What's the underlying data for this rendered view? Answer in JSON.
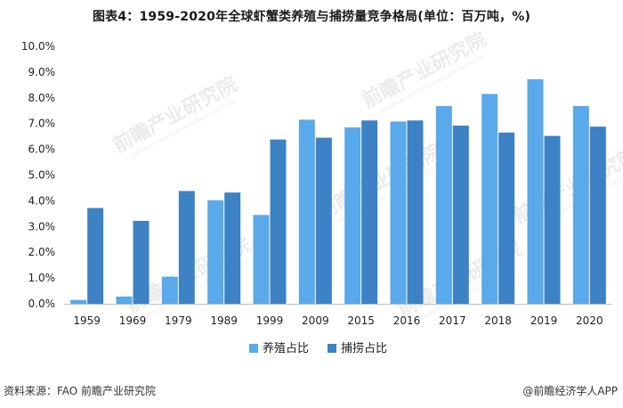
{
  "title": "图表4：1959-2020年全球虾蟹类养殖与捕捞量竞争格局(单位：百万吨，%)",
  "footer": {
    "source": "资料来源：FAO 前瞻产业研究院",
    "brand": "@前瞻经济学人APP"
  },
  "watermark": {
    "main": "前瞻产业研究院",
    "sub": "QIANZHAN INDUSTRY RESEARCH INSTITUTE"
  },
  "chart_data": {
    "type": "bar",
    "title": "图表4：1959-2020年全球虾蟹类养殖与捕捞量竞争格局(单位：百万吨，%)",
    "categories": [
      "1959",
      "1969",
      "1979",
      "1989",
      "1999",
      "2009",
      "2015",
      "2016",
      "2017",
      "2018",
      "2019",
      "2020"
    ],
    "series": [
      {
        "name": "养殖占比",
        "color": "#5aa9ea",
        "values": [
          0.15,
          0.28,
          1.05,
          4.02,
          3.45,
          7.15,
          6.85,
          7.08,
          7.68,
          8.15,
          8.72,
          7.68
        ]
      },
      {
        "name": "捕捞占比",
        "color": "#3c82c4",
        "values": [
          3.72,
          3.22,
          4.38,
          4.32,
          6.38,
          6.45,
          7.12,
          7.12,
          6.92,
          6.65,
          6.52,
          6.88
        ]
      }
    ],
    "ylim": [
      0,
      10
    ],
    "yticks": [
      "0.0%",
      "1.0%",
      "2.0%",
      "3.0%",
      "4.0%",
      "5.0%",
      "6.0%",
      "7.0%",
      "8.0%",
      "9.0%",
      "10.0%"
    ],
    "grid": false,
    "legend": "bottom-center"
  }
}
